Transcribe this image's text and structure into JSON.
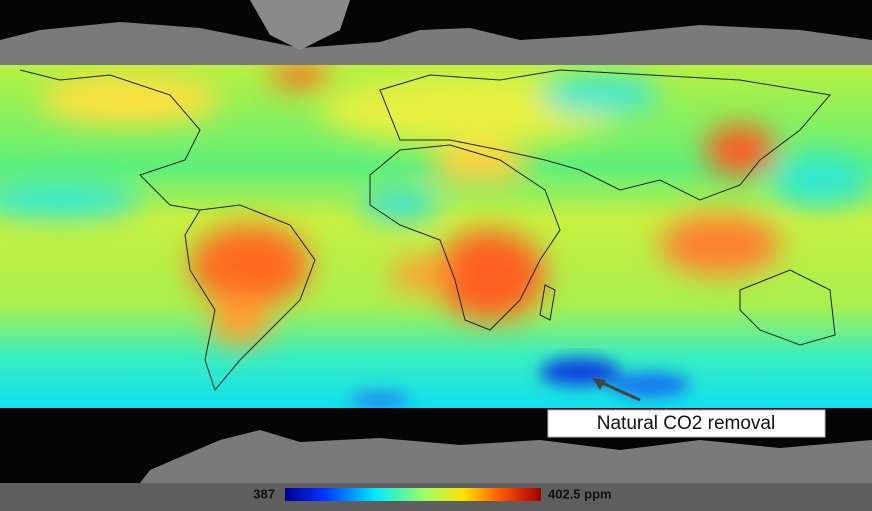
{
  "annotation": "Natural CO2  removal",
  "colorbar": {
    "min_label": "387",
    "max_label": "402.5 ppm"
  }
}
